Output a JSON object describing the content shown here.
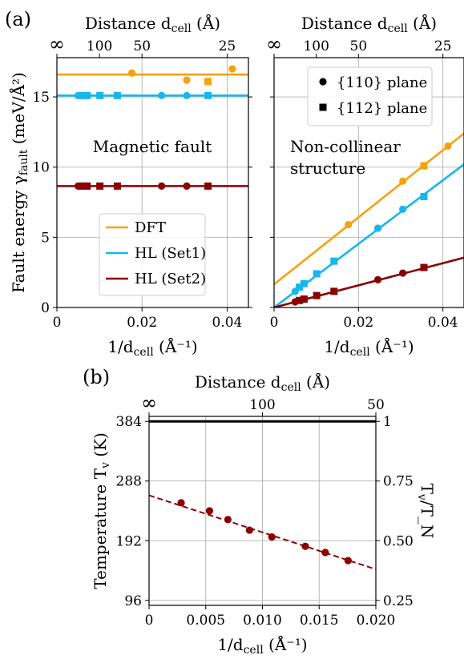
{
  "panel_labels": {
    "a": "(a)",
    "b": "(b)"
  },
  "colors": {
    "dft": "#f5a20b",
    "set1": "#17b7ea",
    "set2": "#8b0000",
    "grid": "#b0b0b0",
    "black": "#000000"
  },
  "chart_data": [
    {
      "id": "a-left",
      "type": "scatter",
      "xlabel": "1/d_cell (Å⁻¹)",
      "ylabel": "Fault energy γ_fault (meV/Å²)",
      "top_xlabel": "Distance d_cell (Å)",
      "xlim": [
        0,
        0.045
      ],
      "ylim": [
        0,
        17.8
      ],
      "xticks": [
        0,
        0.02,
        0.04
      ],
      "xtick_labels": [
        "0",
        "0.02",
        "0.04"
      ],
      "yticks": [
        0,
        5,
        10,
        15
      ],
      "ytick_labels": [
        "0",
        "5",
        "10",
        "15"
      ],
      "top_ticks": [
        0,
        0.01,
        0.02,
        0.04
      ],
      "top_tick_labels": [
        "∞",
        "100",
        "50",
        "25"
      ],
      "grid": true,
      "annotation": "Magnetic fault",
      "legend": {
        "placement": "lower-center",
        "entries": [
          {
            "label": "DFT",
            "color": "#f5a20b"
          },
          {
            "label": "HL (Set1)",
            "color": "#17b7ea"
          },
          {
            "label": "HL (Set2)",
            "color": "#8b0000"
          }
        ]
      },
      "lines": [
        {
          "color": "#f5a20b",
          "y": 16.6
        },
        {
          "color": "#17b7ea",
          "y": 15.1
        },
        {
          "color": "#8b0000",
          "y": 8.65
        }
      ],
      "series": [
        {
          "color": "#f5a20b",
          "marker": "circle",
          "points": [
            [
              0.0176,
              16.7
            ],
            [
              0.0305,
              16.2
            ],
            [
              0.0412,
              17.0
            ]
          ]
        },
        {
          "color": "#f5a20b",
          "marker": "square",
          "points": [
            [
              0.0355,
              16.1
            ]
          ]
        },
        {
          "color": "#17b7ea",
          "marker": "circle",
          "points": [
            [
              0.005,
              15.1
            ],
            [
              0.0246,
              15.1
            ],
            [
              0.0305,
              15.1
            ]
          ]
        },
        {
          "color": "#17b7ea",
          "marker": "square",
          "points": [
            [
              0.006,
              15.1
            ],
            [
              0.0071,
              15.1
            ],
            [
              0.0101,
              15.1
            ],
            [
              0.0142,
              15.1
            ],
            [
              0.0355,
              15.1
            ]
          ]
        },
        {
          "color": "#8b0000",
          "marker": "circle",
          "points": [
            [
              0.005,
              8.65
            ],
            [
              0.0246,
              8.65
            ],
            [
              0.0305,
              8.65
            ]
          ]
        },
        {
          "color": "#8b0000",
          "marker": "square",
          "points": [
            [
              0.006,
              8.65
            ],
            [
              0.0071,
              8.65
            ],
            [
              0.0101,
              8.65
            ],
            [
              0.0142,
              8.65
            ],
            [
              0.0355,
              8.65
            ]
          ]
        }
      ]
    },
    {
      "id": "a-right",
      "type": "scatter",
      "xlabel": "1/d_cell (Å⁻¹)",
      "top_xlabel": "Distance d_cell (Å)",
      "xlim": [
        0,
        0.045
      ],
      "ylim": [
        0,
        17.8
      ],
      "xticks": [
        0,
        0.02,
        0.04
      ],
      "xtick_labels": [
        "0",
        "0.02",
        "0.04"
      ],
      "top_ticks": [
        0,
        0.01,
        0.02,
        0.04
      ],
      "top_tick_labels": [
        "∞",
        "100",
        "50",
        "25"
      ],
      "grid": true,
      "annotation": [
        "Non-collinear",
        "structure"
      ],
      "legend": {
        "placement": "top-center",
        "entries": [
          {
            "label": "{110} plane",
            "marker": "circle"
          },
          {
            "label": "{112} plane",
            "marker": "square"
          }
        ]
      },
      "lines": [
        {
          "color": "#f5a20b",
          "x": [
            0,
            0.045
          ],
          "y": [
            1.65,
            12.4
          ]
        },
        {
          "color": "#17b7ea",
          "x": [
            0,
            0.045
          ],
          "y": [
            0,
            10.2
          ]
        },
        {
          "color": "#8b0000",
          "x": [
            0,
            0.045
          ],
          "y": [
            0,
            3.55
          ]
        }
      ],
      "series": [
        {
          "color": "#f5a20b",
          "marker": "circle",
          "points": [
            [
              0.0176,
              5.9
            ],
            [
              0.0305,
              9.0
            ],
            [
              0.0412,
              11.5
            ]
          ]
        },
        {
          "color": "#f5a20b",
          "marker": "square",
          "points": [
            [
              0.0355,
              10.1
            ]
          ]
        },
        {
          "color": "#17b7ea",
          "marker": "circle",
          "points": [
            [
              0.005,
              1.15
            ],
            [
              0.0246,
              5.65
            ],
            [
              0.0305,
              7.0
            ]
          ]
        },
        {
          "color": "#17b7ea",
          "marker": "square",
          "points": [
            [
              0.006,
              1.45
            ],
            [
              0.0071,
              1.7
            ],
            [
              0.0101,
              2.4
            ],
            [
              0.0142,
              3.3
            ],
            [
              0.0355,
              7.9
            ]
          ]
        },
        {
          "color": "#8b0000",
          "marker": "circle",
          "points": [
            [
              0.005,
              0.4
            ],
            [
              0.0246,
              1.98
            ],
            [
              0.0305,
              2.45
            ]
          ]
        },
        {
          "color": "#8b0000",
          "marker": "square",
          "points": [
            [
              0.006,
              0.5
            ],
            [
              0.0071,
              0.6
            ],
            [
              0.0101,
              0.85
            ],
            [
              0.0142,
              1.15
            ],
            [
              0.0355,
              2.85
            ]
          ]
        }
      ]
    },
    {
      "id": "b",
      "type": "scatter",
      "xlabel": "1/d_cell (Å⁻¹)",
      "ylabel": "Temperature T_v (K)",
      "right_ylabel": "T_v/T_N",
      "top_xlabel": "Distance d_cell (Å)",
      "xlim": [
        0,
        0.02
      ],
      "ylim": [
        88,
        392
      ],
      "xticks": [
        0,
        0.005,
        0.01,
        0.015,
        0.02
      ],
      "xtick_labels": [
        "0",
        "0.005",
        "0.010",
        "0.015",
        "0.020"
      ],
      "yticks": [
        96,
        192,
        288,
        384
      ],
      "ytick_labels": [
        "96",
        "192",
        "288",
        "384"
      ],
      "right_ticks": [
        96,
        192,
        288,
        384
      ],
      "right_tick_labels": [
        "0.25",
        "0.50",
        "0.75",
        "1"
      ],
      "top_ticks": [
        0,
        0.01,
        0.02
      ],
      "top_tick_labels": [
        "∞",
        "100",
        "50"
      ],
      "grid": true,
      "hline": {
        "y": 384,
        "color": "#000000"
      },
      "fit_line": {
        "color": "#8b0000",
        "dashed": true,
        "x": [
          0,
          0.02
        ],
        "y": [
          265,
          146
        ]
      },
      "series": [
        {
          "color": "#8b0000",
          "marker": "circle",
          "x": [
            0.00283,
            0.00533,
            0.00695,
            0.00886,
            0.01083,
            0.01378,
            0.01554,
            0.01755
          ],
          "y": [
            253,
            240,
            226,
            209,
            198,
            183,
            173,
            160
          ]
        }
      ]
    }
  ]
}
